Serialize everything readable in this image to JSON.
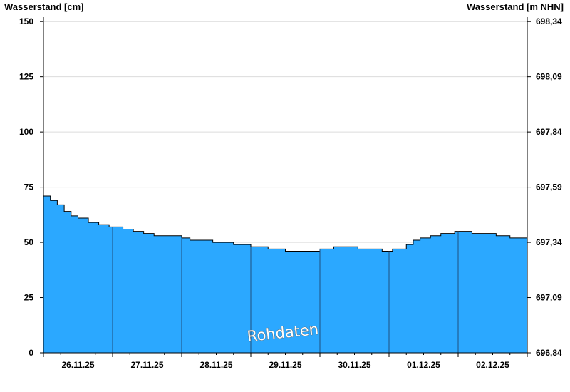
{
  "chart_data": {
    "type": "area",
    "title": "",
    "ylabel_left": "Wasserstand [cm]",
    "ylabel_right": "Wasserstand [m NHN]",
    "ylim": [
      0,
      152
    ],
    "y_ticks_left": [
      {
        "value": 0,
        "label": "0"
      },
      {
        "value": 25,
        "label": "25"
      },
      {
        "value": 50,
        "label": "50"
      },
      {
        "value": 75,
        "label": "75"
      },
      {
        "value": 100,
        "label": "100"
      },
      {
        "value": 125,
        "label": "125"
      },
      {
        "value": 150,
        "label": "150"
      }
    ],
    "y_ticks_right": [
      {
        "value": 0,
        "label": "696,84"
      },
      {
        "value": 25,
        "label": "697,09"
      },
      {
        "value": 50,
        "label": "697,34"
      },
      {
        "value": 75,
        "label": "697,59"
      },
      {
        "value": 100,
        "label": "697,84"
      },
      {
        "value": 125,
        "label": "698,09"
      },
      {
        "value": 150,
        "label": "698,34"
      }
    ],
    "xlim": [
      0,
      7
    ],
    "x_ticks": [
      {
        "value": 0.5,
        "label": "26.11.25"
      },
      {
        "value": 1.5,
        "label": "27.11.25"
      },
      {
        "value": 2.5,
        "label": "28.11.25"
      },
      {
        "value": 3.5,
        "label": "29.11.25"
      },
      {
        "value": 4.5,
        "label": "30.11.25"
      },
      {
        "value": 5.5,
        "label": "01.12.25"
      },
      {
        "value": 6.5,
        "label": "02.12.25"
      }
    ],
    "day_boundaries": [
      1,
      2,
      3,
      4,
      5,
      6
    ],
    "grid": true,
    "legend": "none",
    "watermark": "Rohdaten",
    "fill_color": "#2ba8ff",
    "line_color": "#000000",
    "series": [
      {
        "x": [
          0,
          0.1,
          0.2,
          0.3,
          0.4,
          0.5,
          0.65,
          0.8,
          0.95,
          1.05,
          1.15,
          1.3,
          1.45,
          1.6,
          1.8,
          2.0,
          2.12,
          2.25,
          2.45,
          2.75,
          3.0,
          3.25,
          3.5,
          3.75,
          3.9,
          4.0,
          4.1,
          4.2,
          4.35,
          4.55,
          4.75,
          4.9,
          5.05,
          5.15,
          5.25,
          5.35,
          5.45,
          5.6,
          5.75,
          5.95,
          6.1,
          6.2,
          6.35,
          6.55,
          6.75,
          7.0
        ],
        "y": [
          71,
          69,
          67,
          64,
          62,
          61,
          59,
          58,
          57,
          57,
          56,
          55,
          54,
          53,
          53,
          52,
          51,
          51,
          50,
          49,
          48,
          47,
          46,
          46,
          46,
          47,
          47,
          48,
          48,
          47,
          47,
          46,
          47,
          47,
          49,
          51,
          52,
          53,
          54,
          55,
          55,
          54,
          54,
          53,
          52,
          51
        ]
      }
    ]
  }
}
